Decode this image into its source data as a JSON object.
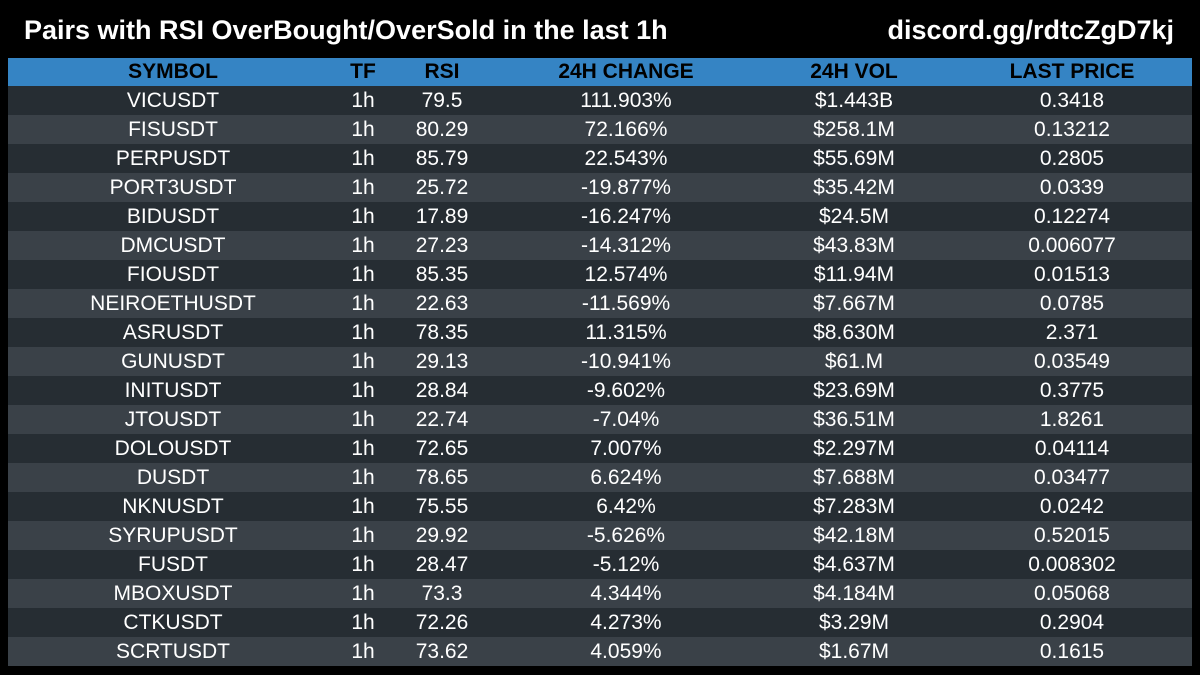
{
  "header": {
    "title": "Pairs with RSI OverBought/OverSold in the last 1h",
    "link": "discord.gg/rdtcZgD7kj"
  },
  "colors": {
    "background": "#000000",
    "header_row": "#3584c4",
    "row_dark": "#262d33",
    "row_light": "#3a4148",
    "text": "#ffffff"
  },
  "table": {
    "columns": [
      "SYMBOL",
      "TF",
      "RSI",
      "24H CHANGE",
      "24H VOL",
      "LAST PRICE"
    ],
    "rows": [
      [
        "VICUSDT",
        "1h",
        "79.5",
        "111.903%",
        "$1.443B",
        "0.3418"
      ],
      [
        "FISUSDT",
        "1h",
        "80.29",
        "72.166%",
        "$258.1M",
        "0.13212"
      ],
      [
        "PERPUSDT",
        "1h",
        "85.79",
        "22.543%",
        "$55.69M",
        "0.2805"
      ],
      [
        "PORT3USDT",
        "1h",
        "25.72",
        "-19.877%",
        "$35.42M",
        "0.0339"
      ],
      [
        "BIDUSDT",
        "1h",
        "17.89",
        "-16.247%",
        "$24.5M",
        "0.12274"
      ],
      [
        "DMCUSDT",
        "1h",
        "27.23",
        "-14.312%",
        "$43.83M",
        "0.006077"
      ],
      [
        "FIOUSDT",
        "1h",
        "85.35",
        "12.574%",
        "$11.94M",
        "0.01513"
      ],
      [
        "NEIROETHUSDT",
        "1h",
        "22.63",
        "-11.569%",
        "$7.667M",
        "0.0785"
      ],
      [
        "ASRUSDT",
        "1h",
        "78.35",
        "11.315%",
        "$8.630M",
        "2.371"
      ],
      [
        "GUNUSDT",
        "1h",
        "29.13",
        "-10.941%",
        "$61.M",
        "0.03549"
      ],
      [
        "INITUSDT",
        "1h",
        "28.84",
        "-9.602%",
        "$23.69M",
        "0.3775"
      ],
      [
        "JTOUSDT",
        "1h",
        "22.74",
        "-7.04%",
        "$36.51M",
        "1.8261"
      ],
      [
        "DOLOUSDT",
        "1h",
        "72.65",
        "7.007%",
        "$2.297M",
        "0.04114"
      ],
      [
        "DUSDT",
        "1h",
        "78.65",
        "6.624%",
        "$7.688M",
        "0.03477"
      ],
      [
        "NKNUSDT",
        "1h",
        "75.55",
        "6.42%",
        "$7.283M",
        "0.0242"
      ],
      [
        "SYRUPUSDT",
        "1h",
        "29.92",
        "-5.626%",
        "$42.18M",
        "0.52015"
      ],
      [
        "FUSDT",
        "1h",
        "28.47",
        "-5.12%",
        "$4.637M",
        "0.008302"
      ],
      [
        "MBOXUSDT",
        "1h",
        "73.3",
        "4.344%",
        "$4.184M",
        "0.05068"
      ],
      [
        "CTKUSDT",
        "1h",
        "72.26",
        "4.273%",
        "$3.29M",
        "0.2904"
      ],
      [
        "SCRTUSDT",
        "1h",
        "73.62",
        "4.059%",
        "$1.67M",
        "0.1615"
      ]
    ]
  }
}
